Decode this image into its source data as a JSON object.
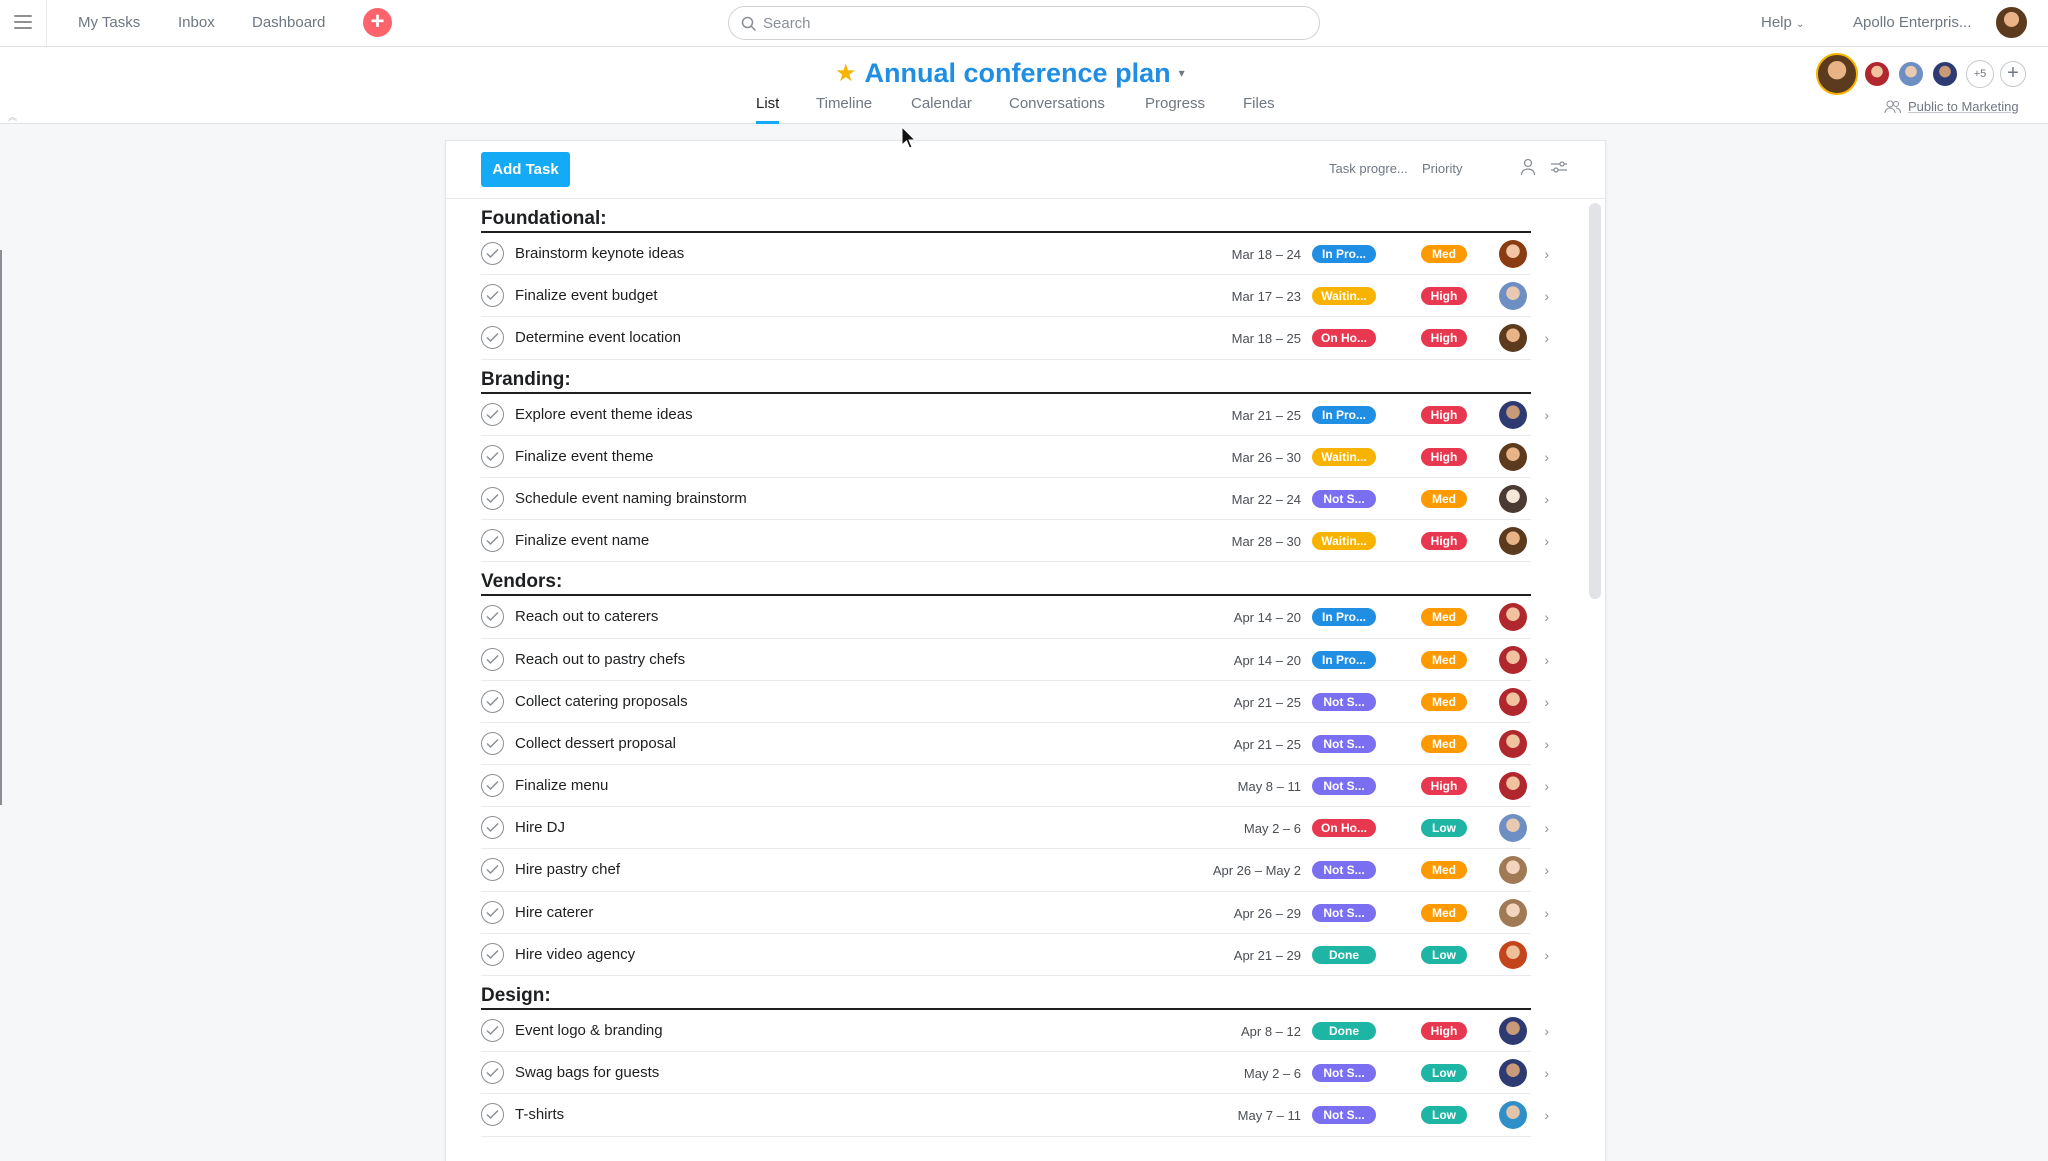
{
  "topbar": {
    "nav": [
      "My Tasks",
      "Inbox",
      "Dashboard"
    ],
    "quick_add": "+",
    "search_placeholder": "Search",
    "help": "Help",
    "org": "Apollo Enterpris..."
  },
  "project": {
    "title": "Annual conference plan",
    "tabs": [
      "List",
      "Timeline",
      "Calendar",
      "Conversations",
      "Progress",
      "Files"
    ],
    "active_tab": "List",
    "members_more": "+5",
    "members_add": "+",
    "visibility": "Public to Marketing"
  },
  "toolbar": {
    "add_task": "Add Task",
    "col_progress": "Task progre...",
    "col_priority": "Priority"
  },
  "colors": {
    "in_progress": "#1f8ee3",
    "waiting": "#f8b300",
    "on_hold": "#e8384f",
    "not_started": "#7a6ff0",
    "done": "#1fb5a5",
    "med": "#fd9a00",
    "high": "#e8384f",
    "low": "#1fb5a5"
  },
  "sections": [
    {
      "title": "Foundational:",
      "tasks": [
        {
          "name": "Brainstorm keynote ideas",
          "date": "Mar 18 – 24",
          "status": "In Pro...",
          "status_kind": "in_progress",
          "priority": "Med",
          "avatar": "a1"
        },
        {
          "name": "Finalize event budget",
          "date": "Mar 17 – 23",
          "status": "Waitin...",
          "status_kind": "waiting",
          "priority": "High",
          "avatar": "a2"
        },
        {
          "name": "Determine event location",
          "date": "Mar 18 – 25",
          "status": "On Ho...",
          "status_kind": "on_hold",
          "priority": "High",
          "avatar": "a3"
        }
      ]
    },
    {
      "title": "Branding:",
      "tasks": [
        {
          "name": "Explore event theme ideas",
          "date": "Mar 21 – 25",
          "status": "In Pro...",
          "status_kind": "in_progress",
          "priority": "High",
          "avatar": "a4"
        },
        {
          "name": "Finalize event theme",
          "date": "Mar 26 – 30",
          "status": "Waitin...",
          "status_kind": "waiting",
          "priority": "High",
          "avatar": "a3"
        },
        {
          "name": "Schedule event naming brainstorm",
          "date": "Mar 22 – 24",
          "status": "Not S...",
          "status_kind": "not_started",
          "priority": "Med",
          "avatar": "a5"
        },
        {
          "name": "Finalize event name",
          "date": "Mar 28 – 30",
          "status": "Waitin...",
          "status_kind": "waiting",
          "priority": "High",
          "avatar": "a3"
        }
      ]
    },
    {
      "title": "Vendors:",
      "tasks": [
        {
          "name": "Reach out to caterers",
          "date": "Apr 14 – 20",
          "status": "In Pro...",
          "status_kind": "in_progress",
          "priority": "Med",
          "avatar": "a6"
        },
        {
          "name": "Reach out to pastry chefs",
          "date": "Apr 14 – 20",
          "status": "In Pro...",
          "status_kind": "in_progress",
          "priority": "Med",
          "avatar": "a6"
        },
        {
          "name": "Collect catering proposals",
          "date": "Apr 21 – 25",
          "status": "Not S...",
          "status_kind": "not_started",
          "priority": "Med",
          "avatar": "a6"
        },
        {
          "name": "Collect dessert proposal",
          "date": "Apr 21 – 25",
          "status": "Not S...",
          "status_kind": "not_started",
          "priority": "Med",
          "avatar": "a6"
        },
        {
          "name": "Finalize menu",
          "date": "May 8 – 11",
          "status": "Not S...",
          "status_kind": "not_started",
          "priority": "High",
          "avatar": "a6"
        },
        {
          "name": "Hire DJ",
          "date": "May 2 – 6",
          "status": "On Ho...",
          "status_kind": "on_hold",
          "priority": "Low",
          "avatar": "a2"
        },
        {
          "name": "Hire pastry chef",
          "date": "Apr 26 – May 2",
          "status": "Not S...",
          "status_kind": "not_started",
          "priority": "Med",
          "avatar": "a7"
        },
        {
          "name": "Hire caterer",
          "date": "Apr 26 – 29",
          "status": "Not S...",
          "status_kind": "not_started",
          "priority": "Med",
          "avatar": "a7"
        },
        {
          "name": "Hire video agency",
          "date": "Apr 21 – 29",
          "status": "Done",
          "status_kind": "done",
          "priority": "Low",
          "avatar": "a8"
        }
      ]
    },
    {
      "title": "Design:",
      "tasks": [
        {
          "name": "Event logo & branding",
          "date": "Apr 8 – 12",
          "status": "Done",
          "status_kind": "done",
          "priority": "High",
          "avatar": "a4"
        },
        {
          "name": "Swag bags for guests",
          "date": "May 2 – 6",
          "status": "Not S...",
          "status_kind": "not_started",
          "priority": "Low",
          "avatar": "a4"
        },
        {
          "name": "T-shirts",
          "date": "May 7 – 11",
          "status": "Not S...",
          "status_kind": "not_started",
          "priority": "Low",
          "avatar": "a9"
        }
      ]
    }
  ]
}
